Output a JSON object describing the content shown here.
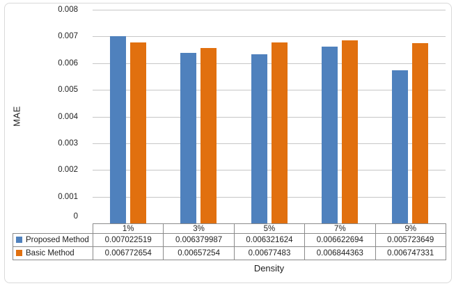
{
  "frame": {
    "background": "#FFFFFF",
    "border_color": "#D9D9D9"
  },
  "chart_data": {
    "type": "bar",
    "title": "",
    "categories": [
      "1%",
      "3%",
      "5%",
      "7%",
      "9%"
    ],
    "series": [
      {
        "name": "Proposed Method",
        "color": "#4F81BD",
        "values": [
          0.007022519,
          0.006379987,
          0.006321624,
          0.006622694,
          0.005723649
        ],
        "value_labels": [
          "0.007022519",
          "0.006379987",
          "0.006321624",
          "0.006622694",
          "0.005723649"
        ]
      },
      {
        "name": "Basic Method",
        "color": "#E1700F",
        "values": [
          0.006772654,
          0.00657254,
          0.00677483,
          0.006844363,
          0.006747331
        ],
        "value_labels": [
          "0.006772654",
          "0.00657254",
          "0.00677483",
          "0.006844363",
          "0.006747331"
        ]
      }
    ],
    "xlabel": "Density",
    "ylabel": "MAE",
    "ylim": [
      0,
      0.008
    ],
    "ytick_labels": [
      "0",
      "0.001",
      "0.002",
      "0.003",
      "0.004",
      "0.005",
      "0.006",
      "0.007",
      "0.008"
    ],
    "grid": true,
    "gridline_color": "#C6C6C6",
    "table_border_color": "#8A8A8A",
    "text_color": "#1F1F1F",
    "legend_position": "data-table-left"
  }
}
